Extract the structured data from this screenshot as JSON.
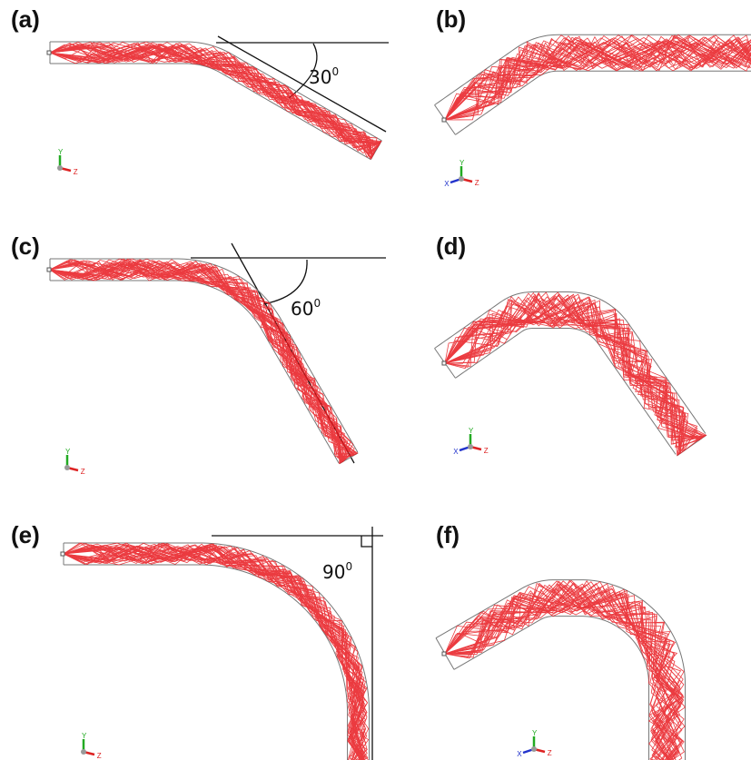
{
  "panels": [
    {
      "label": "(a)",
      "angle": "30",
      "degree": "0",
      "axes": [
        "Y",
        "Z"
      ]
    },
    {
      "label": "(b)",
      "axes": [
        "X",
        "Y",
        "Z"
      ]
    },
    {
      "label": "(c)",
      "angle": "60",
      "degree": "0",
      "axes": [
        "Y",
        "Z"
      ]
    },
    {
      "label": "(d)",
      "axes": [
        "X",
        "Y",
        "Z"
      ]
    },
    {
      "label": "(e)",
      "angle": "90",
      "degree": "0",
      "axes": [
        "Y",
        "Z"
      ]
    },
    {
      "label": "(f)",
      "axes": [
        "X",
        "Y",
        "Z"
      ]
    }
  ]
}
